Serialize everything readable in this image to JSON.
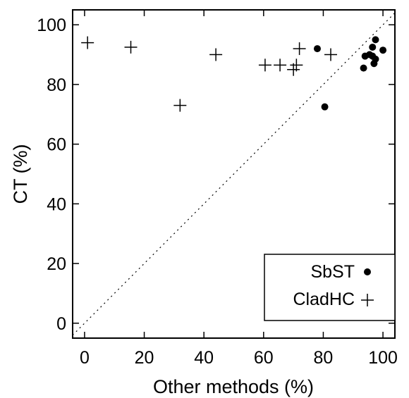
{
  "chart_data": {
    "type": "scatter",
    "title": "",
    "xlabel": "Other methods (%)",
    "ylabel": "CT (%)",
    "xlim": [
      -4,
      104
    ],
    "ylim": [
      -5,
      105
    ],
    "xticks": [
      0,
      20,
      40,
      60,
      80,
      100
    ],
    "yticks": [
      0,
      20,
      40,
      60,
      80,
      100
    ],
    "grid": false,
    "legend_position": "bottom-right",
    "reference_line": {
      "style": "dotted",
      "from": [
        -4,
        -4
      ],
      "to": [
        104,
        104
      ]
    },
    "series": [
      {
        "name": "SbST",
        "marker": "filled-circle",
        "x": [
          78,
          80.5,
          93.5,
          94,
          95.5,
          96.5,
          96.5,
          97,
          97.5,
          97.5,
          100
        ],
        "y": [
          92,
          72.5,
          85.5,
          89.5,
          90,
          92.5,
          89.5,
          87,
          88.5,
          95,
          91.5
        ]
      },
      {
        "name": "CladHC",
        "marker": "plus",
        "x": [
          1,
          15.5,
          32,
          44,
          60.5,
          65.5,
          70,
          71,
          72,
          82.5
        ],
        "y": [
          94,
          92.5,
          73,
          90,
          86.5,
          86.5,
          85,
          86.5,
          92,
          90
        ]
      }
    ]
  }
}
